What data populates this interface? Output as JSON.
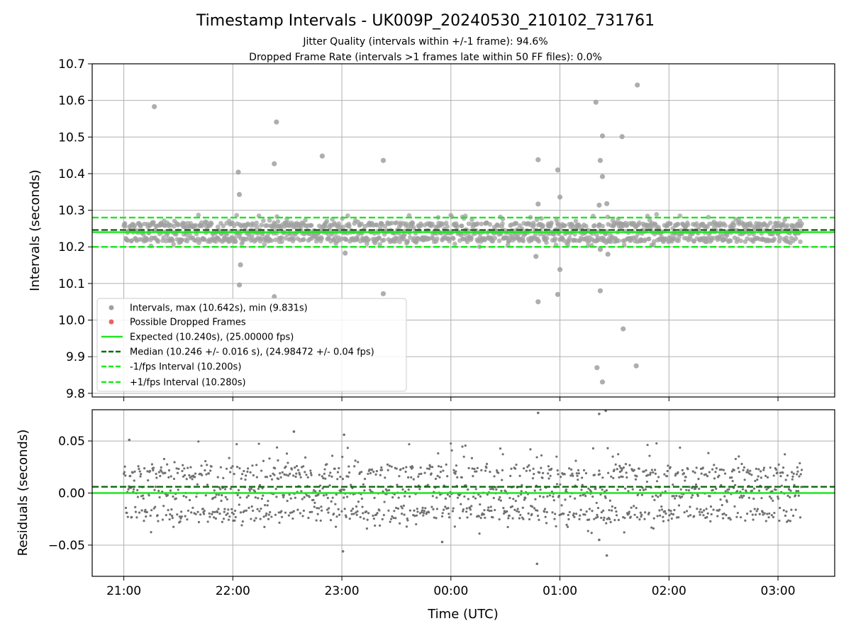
{
  "chart_data": [
    {
      "type": "scatter",
      "title": "Timestamp Intervals - UK009P_20240530_210102_731761",
      "subtitle_lines": [
        "Jitter Quality (intervals within +/-1 frame): 94.6%",
        "Dropped Frame Rate (intervals >1 frames late within 50 FF files): 0.0%"
      ],
      "xlabel": "",
      "ylabel": "Intervals (seconds)",
      "xlim_hours": [
        20.71,
        27.52
      ],
      "ylim": [
        9.79,
        10.7
      ],
      "yticks": [
        9.8,
        9.9,
        10.0,
        10.1,
        10.2,
        10.3,
        10.4,
        10.5,
        10.6,
        10.7
      ],
      "ytick_labels": [
        "9.8",
        "9.9",
        "10.0",
        "10.1",
        "10.2",
        "10.3",
        "10.4",
        "10.5",
        "10.6",
        "10.7"
      ],
      "grid": true,
      "legend_position": "lower-left",
      "lines": {
        "expected": 10.24,
        "median": 10.246,
        "minus_1fps": 10.2,
        "plus_1fps": 10.28
      },
      "series": [
        {
          "name": "Intervals, max (10.642s), min (9.831s)",
          "color": "#808080",
          "style": "scatter"
        },
        {
          "name": "Possible Dropped Frames",
          "color": "#ff0000",
          "style": "scatter"
        },
        {
          "name": "Expected (10.240s), (25.00000 fps)",
          "color": "#00ee00",
          "style": "solid"
        },
        {
          "name": "Median (10.246 +/- 0.016 s), (24.98472 +/- 0.04 fps)",
          "color": "#006400",
          "style": "dashed"
        },
        {
          "name": "-1/fps Interval (10.200s)",
          "color": "#00ee00",
          "style": "dashed"
        },
        {
          "name": "+1/fps Interval (10.280s)",
          "color": "#00ee00",
          "style": "dashed"
        }
      ],
      "outliers": [
        {
          "x": 21.28,
          "y": 10.583
        },
        {
          "x": 22.05,
          "y": 10.404
        },
        {
          "x": 22.06,
          "y": 10.343
        },
        {
          "x": 22.07,
          "y": 10.151
        },
        {
          "x": 22.06,
          "y": 10.096
        },
        {
          "x": 22.4,
          "y": 10.541
        },
        {
          "x": 22.38,
          "y": 10.427
        },
        {
          "x": 22.38,
          "y": 10.064
        },
        {
          "x": 22.82,
          "y": 10.448
        },
        {
          "x": 23.38,
          "y": 10.436
        },
        {
          "x": 23.38,
          "y": 10.072
        },
        {
          "x": 23.03,
          "y": 10.183
        },
        {
          "x": 24.8,
          "y": 10.438
        },
        {
          "x": 24.8,
          "y": 10.317
        },
        {
          "x": 24.78,
          "y": 10.174
        },
        {
          "x": 24.8,
          "y": 10.05
        },
        {
          "x": 24.98,
          "y": 10.41
        },
        {
          "x": 25.0,
          "y": 10.336
        },
        {
          "x": 25.0,
          "y": 10.138
        },
        {
          "x": 24.98,
          "y": 10.07
        },
        {
          "x": 25.33,
          "y": 10.595
        },
        {
          "x": 25.39,
          "y": 10.503
        },
        {
          "x": 25.37,
          "y": 10.436
        },
        {
          "x": 25.39,
          "y": 10.392
        },
        {
          "x": 25.36,
          "y": 10.314
        },
        {
          "x": 25.43,
          "y": 10.318
        },
        {
          "x": 25.37,
          "y": 10.193
        },
        {
          "x": 25.44,
          "y": 10.18
        },
        {
          "x": 25.37,
          "y": 10.08
        },
        {
          "x": 25.34,
          "y": 9.87
        },
        {
          "x": 25.39,
          "y": 9.831
        },
        {
          "x": 25.57,
          "y": 10.501
        },
        {
          "x": 25.58,
          "y": 9.976
        },
        {
          "x": 25.71,
          "y": 10.642
        },
        {
          "x": 25.7,
          "y": 9.875
        }
      ]
    },
    {
      "type": "scatter",
      "xlabel": "Time (UTC)",
      "ylabel": "Residuals (seconds)",
      "ylim": [
        -0.08,
        0.08
      ],
      "yticks": [
        -0.05,
        0.0,
        0.05
      ],
      "ytick_labels": [
        "−0.05",
        "0.00",
        "0.05"
      ],
      "xticks_hours": [
        21,
        22,
        23,
        24,
        25,
        26,
        27
      ],
      "xtick_labels": [
        "21:00",
        "22:00",
        "23:00",
        "00:00",
        "01:00",
        "02:00",
        "03:00"
      ],
      "grid": true,
      "lines": {
        "expected": 0.0,
        "median": 0.006
      },
      "outliers": [
        {
          "x": 21.05,
          "y": 0.051
        },
        {
          "x": 22.56,
          "y": 0.059
        },
        {
          "x": 23.02,
          "y": 0.056
        },
        {
          "x": 23.01,
          "y": -0.056
        },
        {
          "x": 23.92,
          "y": -0.047
        },
        {
          "x": 24.8,
          "y": 0.077
        },
        {
          "x": 24.79,
          "y": -0.068
        },
        {
          "x": 25.36,
          "y": 0.076
        },
        {
          "x": 25.42,
          "y": 0.079
        },
        {
          "x": 25.36,
          "y": -0.045
        },
        {
          "x": 25.43,
          "y": -0.06
        }
      ]
    }
  ]
}
